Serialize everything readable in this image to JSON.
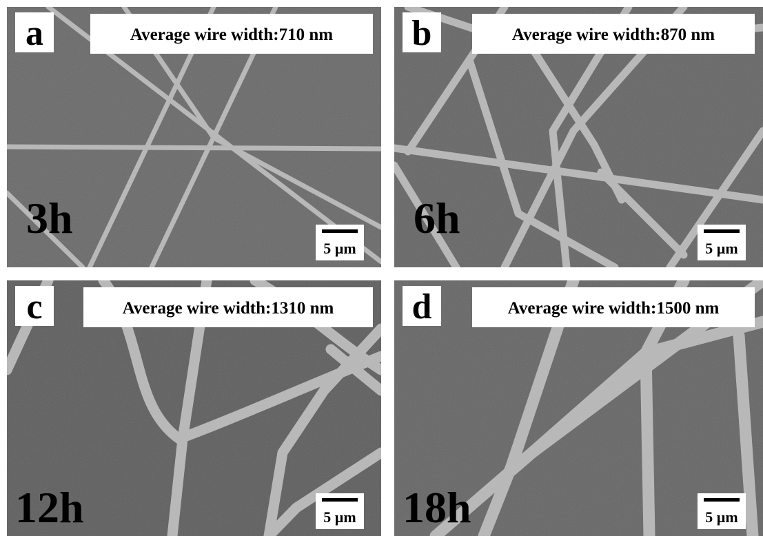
{
  "panels": [
    {
      "label": "a",
      "caption": "Average wire width:710 nm",
      "time": "3h",
      "scale": "5 µm"
    },
    {
      "label": "b",
      "caption": "Average wire width:870 nm",
      "time": "6h",
      "scale": "5 µm"
    },
    {
      "label": "c",
      "caption": "Average wire width:1310 nm",
      "time": "12h",
      "scale": "5 µm"
    },
    {
      "label": "d",
      "caption": "Average wire width:1500 nm",
      "time": "18h",
      "scale": "5 µm"
    }
  ]
}
